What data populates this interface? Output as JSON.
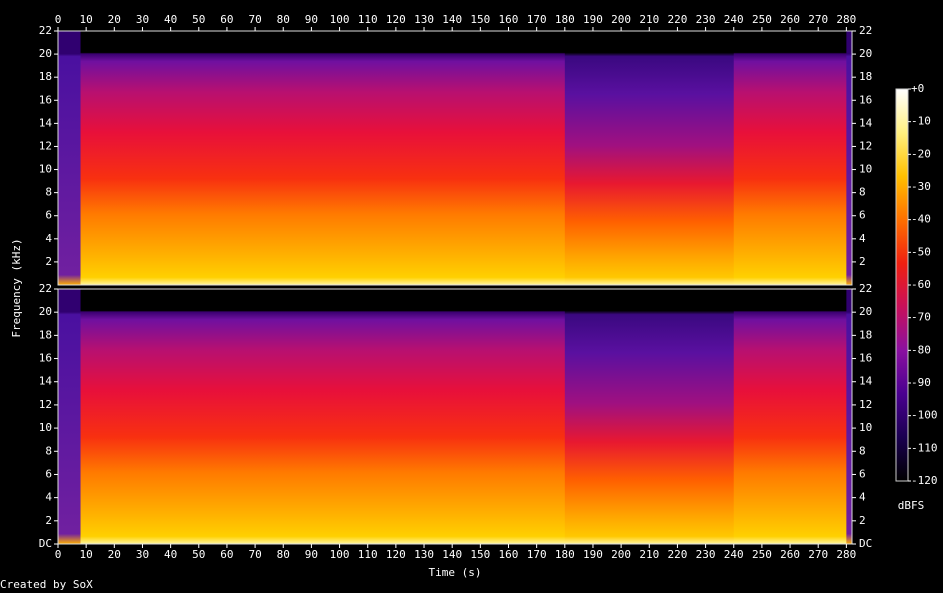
{
  "chart_data": {
    "type": "spectrogram",
    "xlabel": "Time (s)",
    "ylabel": "Frequency (kHz)",
    "credit": "Created by SoX",
    "xlim": [
      0,
      282
    ],
    "xticks": [
      0,
      10,
      20,
      30,
      40,
      50,
      60,
      70,
      80,
      90,
      100,
      110,
      120,
      130,
      140,
      150,
      160,
      170,
      180,
      190,
      200,
      210,
      220,
      230,
      240,
      250,
      260,
      270,
      280
    ],
    "panels": [
      {
        "ylim": [
          0,
          22
        ],
        "yticks": [
          2,
          4,
          6,
          8,
          10,
          12,
          14,
          16,
          18,
          20,
          22
        ]
      },
      {
        "ylim": [
          0,
          22
        ],
        "yticks": [
          {
            "value": 0,
            "label": "DC"
          },
          2,
          4,
          6,
          8,
          10,
          12,
          14,
          16,
          18,
          20,
          22
        ]
      }
    ],
    "colorbar": {
      "label": "dBFS",
      "lim": [
        -120,
        0
      ],
      "ticks": [
        {
          "value": 0,
          "label": "+0"
        },
        -10,
        -20,
        -30,
        -40,
        -50,
        -60,
        -70,
        -80,
        -90,
        -100,
        -110,
        -120
      ],
      "colors": [
        "#000000",
        "#1a0050",
        "#4a0090",
        "#8a10a0",
        "#c8105a",
        "#f02010",
        "#ff7000",
        "#ffc000",
        "#fff080",
        "#ffffff"
      ]
    }
  }
}
